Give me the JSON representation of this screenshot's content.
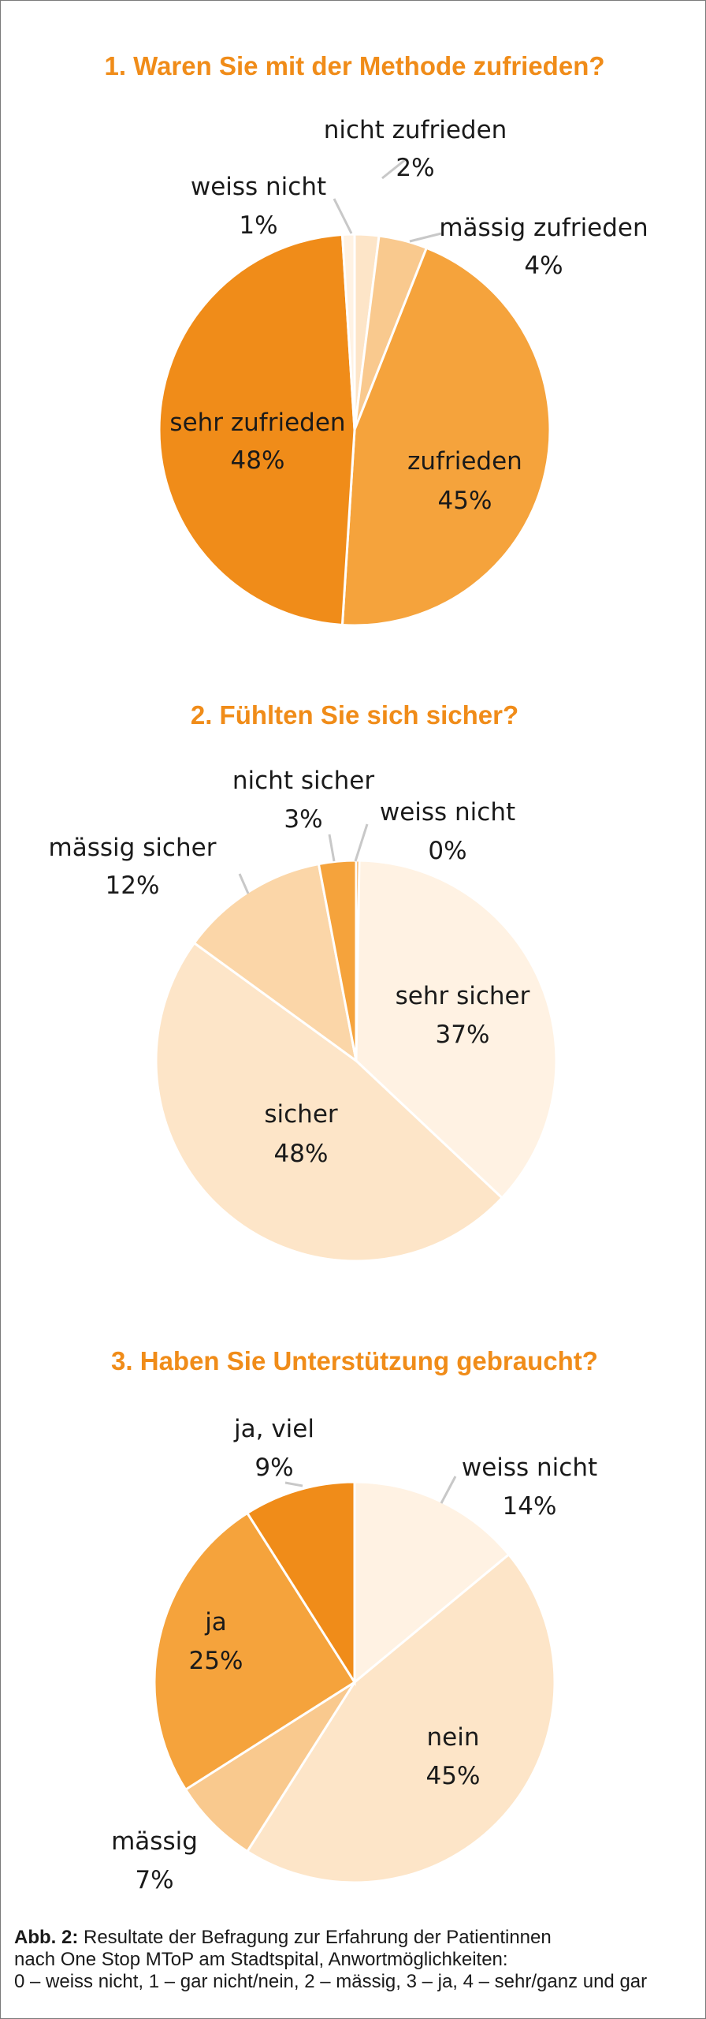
{
  "colors": {
    "title": "#f08c19",
    "darkest": "#f08c19",
    "dark": "#f5a33c",
    "mid": "#f9c98e",
    "light": "#fde5c8",
    "lighter": "#fff2e3"
  },
  "chart_data": [
    {
      "type": "pie",
      "title": "1. Waren Sie mit der Methode zufrieden?",
      "slices": [
        {
          "name": "nicht zufrieden",
          "value": 2,
          "label": "2%",
          "color": "#fde5c8"
        },
        {
          "name": "mässig zufrieden",
          "value": 4,
          "label": "4%",
          "color": "#f9c98e"
        },
        {
          "name": "zufrieden",
          "value": 45,
          "label": "45%",
          "color": "#f5a33c"
        },
        {
          "name": "sehr zufrieden",
          "value": 48,
          "label": "48%",
          "color": "#f08c19"
        },
        {
          "name": "weiss nicht",
          "value": 1,
          "label": "1%",
          "color": "#fff2e3"
        }
      ]
    },
    {
      "type": "pie",
      "title": "2. Fühlten Sie sich sicher?",
      "slices": [
        {
          "name": "sehr sicher",
          "value": 37,
          "label": "37%",
          "color": "#fff2e3"
        },
        {
          "name": "sicher",
          "value": 48,
          "label": "48%",
          "color": "#fde5c8"
        },
        {
          "name": "mässig sicher",
          "value": 12,
          "label": "12%",
          "color": "#fbd6a8"
        },
        {
          "name": "nicht sicher",
          "value": 3,
          "label": "3%",
          "color": "#f5a33c"
        },
        {
          "name": "weiss nicht",
          "value": 0,
          "label": "0%",
          "color": "#f08c19"
        }
      ]
    },
    {
      "type": "pie",
      "title": "3. Haben Sie Unterstützung gebraucht?",
      "slices": [
        {
          "name": "weiss nicht",
          "value": 14,
          "label": "14%",
          "color": "#fff2e3"
        },
        {
          "name": "nein",
          "value": 45,
          "label": "45%",
          "color": "#fde5c8"
        },
        {
          "name": "mässig",
          "value": 7,
          "label": "7%",
          "color": "#f9c98e"
        },
        {
          "name": "ja",
          "value": 25,
          "label": "25%",
          "color": "#f5a33c"
        },
        {
          "name": "ja, viel",
          "value": 9,
          "label": "9%",
          "color": "#f08c19"
        }
      ]
    }
  ],
  "caption": {
    "label": "Abb. 2:",
    "line1": "Resultate der Befragung zur Erfahrung der Patientinnen",
    "line2": "nach One Stop MToP am Stadtspital, Anwortmöglichkeiten:",
    "line3": "0 – weiss nicht, 1 – gar nicht/nein, 2 – mässig, 3 – ja, 4 – sehr/ganz und gar"
  }
}
